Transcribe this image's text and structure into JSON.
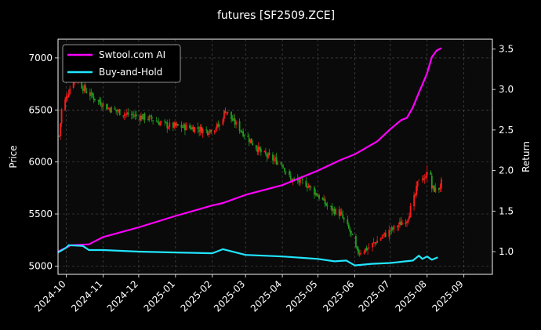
{
  "chart_data": {
    "type": "line",
    "title": "futures [SF2509.ZCE]",
    "ylabel": "Price",
    "y2label": "Return",
    "grid": true,
    "legend_placement": "top-left",
    "colors": {
      "background": "#000000",
      "up": "#ff1a1a",
      "down": "#1f9e1f",
      "ai": "#ff00ff",
      "hold": "#22e5ff",
      "grid": "#555555"
    },
    "xlim": [
      "2024-09-24",
      "2025-09-25"
    ],
    "ylim": [
      4920,
      7180
    ],
    "y2lim": [
      0.72,
      3.62
    ],
    "x_ticks": [
      "2024-10-01",
      "2024-11-01",
      "2024-12-01",
      "2025-01-01",
      "2025-02-01",
      "2025-03-01",
      "2025-04-01",
      "2025-05-01",
      "2025-06-01",
      "2025-07-01",
      "2025-08-01",
      "2025-09-01"
    ],
    "x_tick_labels": [
      "2024-10",
      "2024-11",
      "2024-12",
      "2025-01",
      "2025-02",
      "2025-03",
      "2025-04",
      "2025-05",
      "2025-06",
      "2025-07",
      "2025-08",
      "2025-09"
    ],
    "y_ticks": [
      5000,
      5500,
      6000,
      6500,
      7000
    ],
    "y2_ticks": [
      1.0,
      1.5,
      2.0,
      2.5,
      3.0,
      3.5
    ],
    "price_keypoints": [
      {
        "x": "2024-09-25",
        "y": 6250
      },
      {
        "x": "2024-09-27",
        "y": 6500
      },
      {
        "x": "2024-10-08",
        "y": 6830
      },
      {
        "x": "2024-10-16",
        "y": 6700
      },
      {
        "x": "2024-10-24",
        "y": 6620
      },
      {
        "x": "2024-11-05",
        "y": 6520
      },
      {
        "x": "2024-11-20",
        "y": 6460
      },
      {
        "x": "2024-12-10",
        "y": 6420
      },
      {
        "x": "2024-12-25",
        "y": 6350
      },
      {
        "x": "2025-01-15",
        "y": 6330
      },
      {
        "x": "2025-01-28",
        "y": 6300
      },
      {
        "x": "2025-02-07",
        "y": 6350
      },
      {
        "x": "2025-02-12",
        "y": 6500
      },
      {
        "x": "2025-02-18",
        "y": 6400
      },
      {
        "x": "2025-02-28",
        "y": 6270
      },
      {
        "x": "2025-03-15",
        "y": 6080
      },
      {
        "x": "2025-04-01",
        "y": 5980
      },
      {
        "x": "2025-04-08",
        "y": 5830
      },
      {
        "x": "2025-04-20",
        "y": 5800
      },
      {
        "x": "2025-05-01",
        "y": 5680
      },
      {
        "x": "2025-05-10",
        "y": 5560
      },
      {
        "x": "2025-05-20",
        "y": 5500
      },
      {
        "x": "2025-05-28",
        "y": 5330
      },
      {
        "x": "2025-06-03",
        "y": 5130
      },
      {
        "x": "2025-06-12",
        "y": 5170
      },
      {
        "x": "2025-06-25",
        "y": 5290
      },
      {
        "x": "2025-07-05",
        "y": 5370
      },
      {
        "x": "2025-07-15",
        "y": 5450
      },
      {
        "x": "2025-07-22",
        "y": 5680
      },
      {
        "x": "2025-07-26",
        "y": 5900
      },
      {
        "x": "2025-07-30",
        "y": 5820
      },
      {
        "x": "2025-08-02",
        "y": 6050
      },
      {
        "x": "2025-08-05",
        "y": 5750
      },
      {
        "x": "2025-08-10",
        "y": 5720
      },
      {
        "x": "2025-08-13",
        "y": 5800
      }
    ],
    "series": [
      {
        "name": "Swtool.com AI",
        "axis": "right",
        "points": [
          {
            "x": "2024-09-24",
            "y": 1.0
          },
          {
            "x": "2024-10-05",
            "y": 1.08
          },
          {
            "x": "2024-10-20",
            "y": 1.09
          },
          {
            "x": "2024-11-01",
            "y": 1.18
          },
          {
            "x": "2024-12-01",
            "y": 1.3
          },
          {
            "x": "2025-01-01",
            "y": 1.44
          },
          {
            "x": "2025-02-01",
            "y": 1.57
          },
          {
            "x": "2025-02-10",
            "y": 1.6
          },
          {
            "x": "2025-03-01",
            "y": 1.7
          },
          {
            "x": "2025-04-01",
            "y": 1.82
          },
          {
            "x": "2025-05-01",
            "y": 2.0
          },
          {
            "x": "2025-05-20",
            "y": 2.13
          },
          {
            "x": "2025-06-01",
            "y": 2.2
          },
          {
            "x": "2025-06-20",
            "y": 2.36
          },
          {
            "x": "2025-07-01",
            "y": 2.51
          },
          {
            "x": "2025-07-10",
            "y": 2.62
          },
          {
            "x": "2025-07-15",
            "y": 2.65
          },
          {
            "x": "2025-07-20",
            "y": 2.78
          },
          {
            "x": "2025-07-25",
            "y": 2.96
          },
          {
            "x": "2025-07-28",
            "y": 3.06
          },
          {
            "x": "2025-08-01",
            "y": 3.2
          },
          {
            "x": "2025-08-05",
            "y": 3.4
          },
          {
            "x": "2025-08-09",
            "y": 3.48
          },
          {
            "x": "2025-08-13",
            "y": 3.51
          }
        ]
      },
      {
        "name": "Buy-and-Hold",
        "axis": "right",
        "points": [
          {
            "x": "2024-09-24",
            "y": 0.99
          },
          {
            "x": "2024-10-01",
            "y": 1.05
          },
          {
            "x": "2024-10-03",
            "y": 1.08
          },
          {
            "x": "2024-10-15",
            "y": 1.07
          },
          {
            "x": "2024-10-20",
            "y": 1.02
          },
          {
            "x": "2024-11-01",
            "y": 1.02
          },
          {
            "x": "2024-12-01",
            "y": 1.0
          },
          {
            "x": "2025-01-01",
            "y": 0.99
          },
          {
            "x": "2025-02-01",
            "y": 0.98
          },
          {
            "x": "2025-02-10",
            "y": 1.03
          },
          {
            "x": "2025-03-01",
            "y": 0.96
          },
          {
            "x": "2025-04-01",
            "y": 0.94
          },
          {
            "x": "2025-05-01",
            "y": 0.91
          },
          {
            "x": "2025-05-15",
            "y": 0.88
          },
          {
            "x": "2025-05-25",
            "y": 0.89
          },
          {
            "x": "2025-06-01",
            "y": 0.83
          },
          {
            "x": "2025-06-15",
            "y": 0.85
          },
          {
            "x": "2025-07-01",
            "y": 0.86
          },
          {
            "x": "2025-07-20",
            "y": 0.89
          },
          {
            "x": "2025-07-25",
            "y": 0.95
          },
          {
            "x": "2025-07-28",
            "y": 0.91
          },
          {
            "x": "2025-08-01",
            "y": 0.94
          },
          {
            "x": "2025-08-05",
            "y": 0.9
          },
          {
            "x": "2025-08-10",
            "y": 0.93
          }
        ]
      }
    ]
  }
}
